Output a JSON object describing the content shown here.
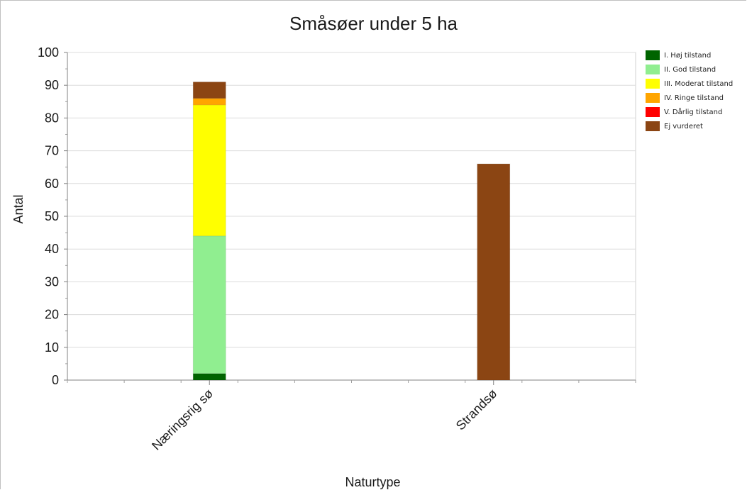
{
  "chart_data": {
    "type": "bar",
    "stacked": true,
    "title": "Småsøer under 5 ha",
    "xlabel": "Naturtype",
    "ylabel": "Antal",
    "ylim": [
      0,
      100
    ],
    "yticks": [
      0,
      10,
      20,
      30,
      40,
      50,
      60,
      70,
      80,
      90,
      100
    ],
    "grid": true,
    "legend_position": "right",
    "categories": [
      "Næringsrig sø",
      "Strandsø"
    ],
    "series": [
      {
        "name": "I. Høj tilstand",
        "color": "#006400",
        "values": [
          2,
          0
        ]
      },
      {
        "name": "II. God tilstand",
        "color": "#90EE90",
        "values": [
          42,
          0
        ]
      },
      {
        "name": "III. Moderat tilstand",
        "color": "#FFFF00",
        "values": [
          40,
          0
        ]
      },
      {
        "name": "IV. Ringe tilstand",
        "color": "#FFA500",
        "values": [
          2,
          0
        ]
      },
      {
        "name": "V. Dårlig tilstand",
        "color": "#FF0000",
        "values": [
          0,
          0
        ]
      },
      {
        "name": "Ej vurderet",
        "color": "#8B4513",
        "values": [
          5,
          66
        ]
      }
    ]
  }
}
